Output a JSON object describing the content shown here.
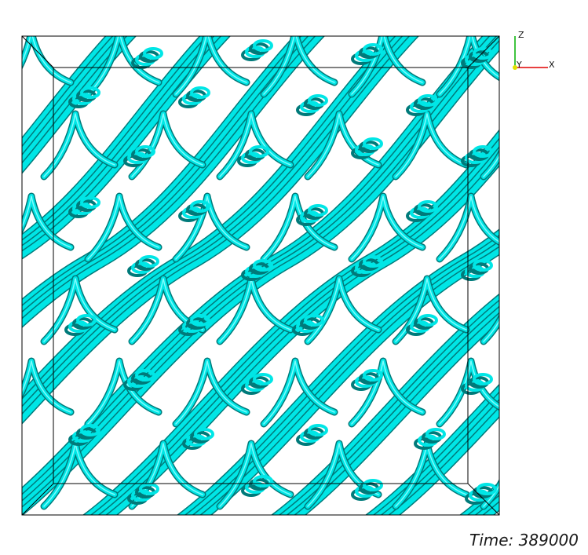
{
  "scene": {
    "time_label": "Time: 389000",
    "surface_color": "#00e6e6",
    "surface_shadow_color": "#007a7a",
    "surface_light_color": "#7ffcfc",
    "outline_color": "#000000"
  },
  "axes": {
    "x_label": "X",
    "y_label": "Y",
    "z_label": "Z",
    "x_color": "#e00000",
    "y_color": "#e0e000",
    "z_color": "#00b000"
  }
}
